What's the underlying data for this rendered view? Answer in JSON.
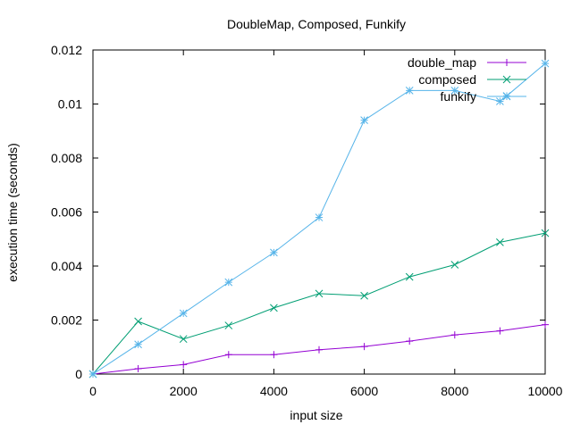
{
  "chart_data": {
    "type": "line",
    "title": "DoubleMap, Composed, Funkify",
    "xlabel": "input size",
    "ylabel": "execution time (seconds)",
    "xlim": [
      0,
      10000
    ],
    "ylim": [
      0,
      0.012
    ],
    "x_ticks": [
      0,
      2000,
      4000,
      6000,
      8000,
      10000
    ],
    "x_tick_labels": [
      "0",
      "2000",
      "4000",
      "6000",
      "8000",
      "10000"
    ],
    "y_ticks": [
      0,
      0.002,
      0.004,
      0.006,
      0.008,
      0.01,
      0.012
    ],
    "y_tick_labels": [
      "0",
      "0.002",
      "0.004",
      "0.006",
      "0.008",
      "0.01",
      "0.012"
    ],
    "grid": false,
    "legend_position": "top-right",
    "series": [
      {
        "name": "double_map",
        "color": "#9400d3",
        "marker": "plus",
        "x": [
          0,
          1000,
          2000,
          3000,
          4000,
          5000,
          6000,
          7000,
          8000,
          9000,
          10000
        ],
        "y": [
          0,
          0.0002,
          0.00035,
          0.00072,
          0.00072,
          0.0009,
          0.00102,
          0.00122,
          0.00145,
          0.0016,
          0.00183
        ]
      },
      {
        "name": "composed",
        "color": "#009e73",
        "marker": "cross",
        "x": [
          0,
          1000,
          2000,
          3000,
          4000,
          5000,
          6000,
          7000,
          8000,
          9000,
          10000
        ],
        "y": [
          0,
          0.00195,
          0.0013,
          0.0018,
          0.00245,
          0.00298,
          0.0029,
          0.0036,
          0.00405,
          0.00488,
          0.00522
        ]
      },
      {
        "name": "funkify",
        "color": "#56b4e9",
        "marker": "star",
        "x": [
          0,
          1000,
          2000,
          3000,
          4000,
          5000,
          6000,
          7000,
          8000,
          9000,
          9150,
          10000
        ],
        "y": [
          0,
          0.0011,
          0.00225,
          0.0034,
          0.0045,
          0.0058,
          0.0094,
          0.0105,
          0.0105,
          0.0101,
          0.0103,
          0.0115
        ]
      }
    ]
  }
}
